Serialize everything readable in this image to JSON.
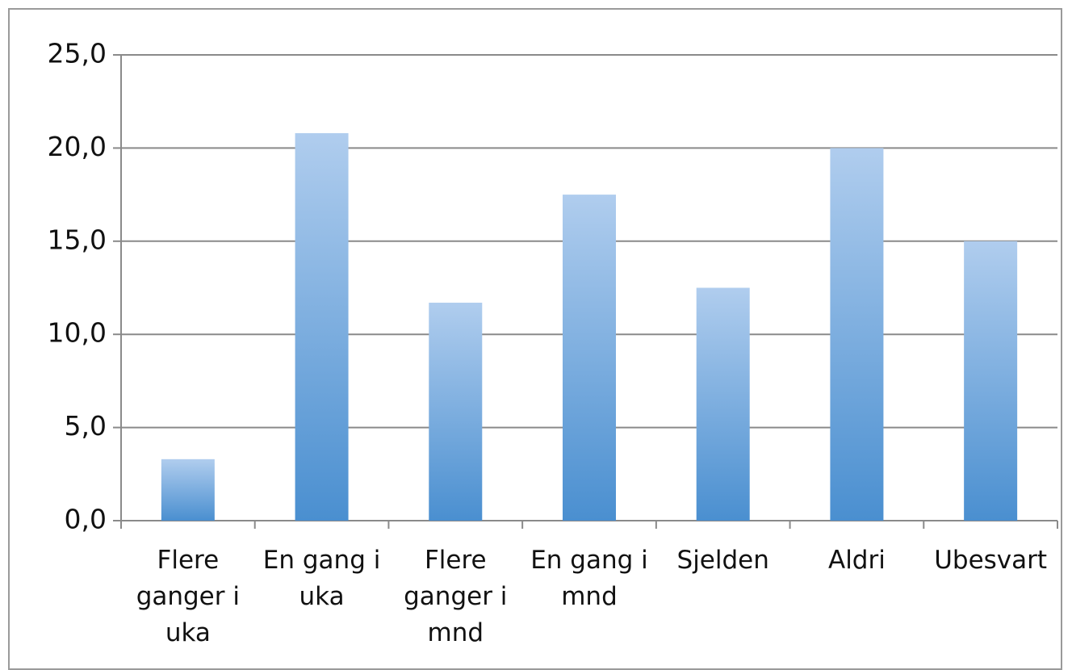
{
  "chart_data": {
    "type": "bar",
    "categories": [
      "Flere ganger i uka",
      "En gang i uka",
      "Flere ganger i mnd",
      "En gang i mnd",
      "Sjelden",
      "Aldri",
      "Ubesvart"
    ],
    "values": [
      3.3,
      20.8,
      11.7,
      17.5,
      12.5,
      20.0,
      15.0
    ],
    "color": "#4a8fd0",
    "ylim": [
      0,
      25
    ],
    "yticks": [
      {
        "value": 0,
        "label": "0,0"
      },
      {
        "value": 5,
        "label": "5,0"
      },
      {
        "value": 10,
        "label": "10,0"
      },
      {
        "value": 15,
        "label": "15,0"
      },
      {
        "value": 20,
        "label": "20,0"
      },
      {
        "value": 25,
        "label": "25,0"
      }
    ],
    "grid": true
  }
}
